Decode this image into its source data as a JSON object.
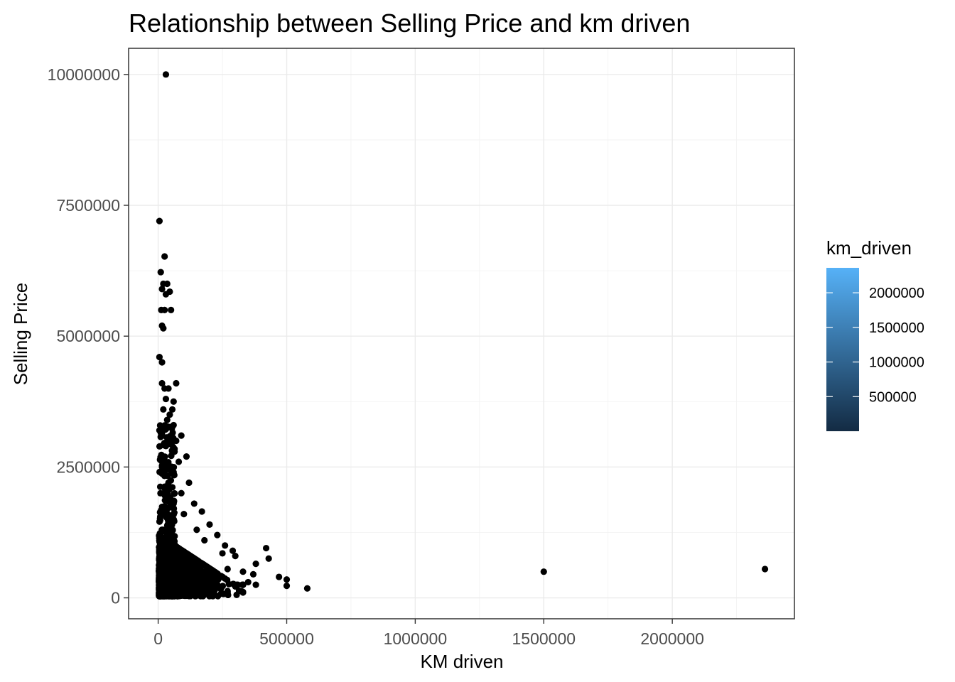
{
  "chart_data": {
    "type": "scatter",
    "title": "Relationship between Selling Price and km driven",
    "xlabel": "KM driven",
    "ylabel": "Selling Price",
    "xlim": [
      -115000,
      2475000
    ],
    "ylim": [
      -400000,
      10500000
    ],
    "x_ticks": [
      0,
      500000,
      1000000,
      1500000,
      2000000
    ],
    "x_tick_labels": [
      "0",
      "500000",
      "1000000",
      "1500000",
      "2000000"
    ],
    "y_ticks": [
      0,
      2500000,
      5000000,
      7500000,
      10000000
    ],
    "y_tick_labels": [
      "0",
      "2500000",
      "5000000",
      "7500000",
      "10000000"
    ],
    "grid": true,
    "point_color": "#000000",
    "legend": {
      "title": "km_driven",
      "position": "right",
      "type": "colorbar",
      "range": [
        1,
        2360457
      ],
      "ticks": [
        500000,
        1000000,
        1500000,
        2000000
      ],
      "tick_labels": [
        "500000",
        "1000000",
        "1500000",
        "2000000"
      ],
      "low_color": "#132b43",
      "high_color": "#56b1f7"
    },
    "points": [
      [
        30000,
        10000000
      ],
      [
        5000,
        7200000
      ],
      [
        25000,
        6523000
      ],
      [
        10000,
        6223000
      ],
      [
        20000,
        6000000
      ],
      [
        35000,
        6000000
      ],
      [
        15000,
        5900000
      ],
      [
        45000,
        5850000
      ],
      [
        30000,
        5800000
      ],
      [
        12000,
        5500000
      ],
      [
        25000,
        5500000
      ],
      [
        50000,
        5500000
      ],
      [
        15000,
        5200000
      ],
      [
        20000,
        5150000
      ],
      [
        5000,
        4600000
      ],
      [
        15000,
        4500000
      ],
      [
        70000,
        4100000
      ],
      [
        15000,
        4100000
      ],
      [
        25000,
        4000000
      ],
      [
        40000,
        4000000
      ],
      [
        30000,
        3800000
      ],
      [
        60000,
        3750000
      ],
      [
        20000,
        3600000
      ],
      [
        55000,
        3600000
      ],
      [
        45000,
        3500000
      ],
      [
        35000,
        3400000
      ],
      [
        60000,
        3300000
      ],
      [
        5000,
        3200000
      ],
      [
        20000,
        3200000
      ],
      [
        90000,
        3100000
      ],
      [
        40000,
        3000000
      ],
      [
        70000,
        3000000
      ],
      [
        30000,
        2900000
      ],
      [
        110000,
        2700000
      ],
      [
        20000,
        2700000
      ],
      [
        80000,
        2600000
      ],
      [
        15000,
        2500000
      ],
      [
        60000,
        2400000
      ],
      [
        120000,
        2200000
      ],
      [
        40000,
        2200000
      ],
      [
        25000,
        2100000
      ],
      [
        90000,
        2000000
      ],
      [
        140000,
        1800000
      ],
      [
        60000,
        1800000
      ],
      [
        170000,
        1650000
      ],
      [
        100000,
        1600000
      ],
      [
        200000,
        1400000
      ],
      [
        150000,
        1300000
      ],
      [
        230000,
        1200000
      ],
      [
        180000,
        1100000
      ],
      [
        260000,
        1000000
      ],
      [
        290000,
        900000
      ],
      [
        250000,
        850000
      ],
      [
        420000,
        950000
      ],
      [
        300000,
        800000
      ],
      [
        380000,
        650000
      ],
      [
        430000,
        750000
      ],
      [
        270000,
        550000
      ],
      [
        330000,
        500000
      ],
      [
        370000,
        450000
      ],
      [
        470000,
        400000
      ],
      [
        500000,
        350000
      ],
      [
        350000,
        300000
      ],
      [
        310000,
        250000
      ],
      [
        380000,
        250000
      ],
      [
        500000,
        230000
      ],
      [
        580000,
        180000
      ],
      [
        270000,
        100000
      ],
      [
        220000,
        150000
      ],
      [
        160000,
        200000
      ],
      [
        1500000,
        500000
      ],
      [
        2360457,
        550000
      ]
    ]
  }
}
